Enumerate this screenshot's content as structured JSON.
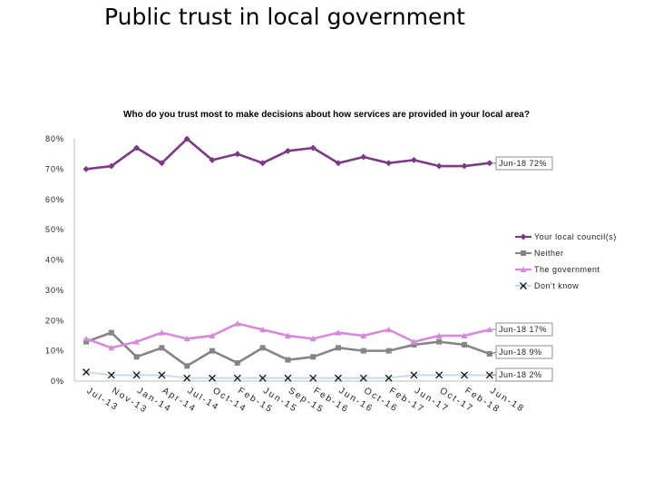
{
  "slide": {
    "title": "Public trust in local government",
    "question": "Who do you trust most to make decisions about how services are provided in your local area?"
  },
  "chart_data": {
    "type": "line",
    "categories": [
      "Jul-13",
      "Nov-13",
      "Jan-14",
      "Apr-14",
      "Jul-14",
      "Oct-14",
      "Feb-15",
      "Jun-15",
      "Sep-15",
      "Feb-16",
      "Jun-16",
      "Oct-16",
      "Feb-17",
      "Jun-17",
      "Oct-17",
      "Feb-18",
      "Jun-18"
    ],
    "x_tick_labels": [
      "Jul-13",
      "Nov-13",
      "Jan-14",
      "Apr-14",
      "Jul-14",
      "Oct-14",
      "Feb-15",
      "Jun-15",
      "Sep-15",
      "Feb-16",
      "Jun-16",
      "Oct-16",
      "Feb-17",
      "Jun-17",
      "Oct-17",
      "Feb-18",
      "Jun-18"
    ],
    "y_tick_labels": [
      "0%",
      "10%",
      "20%",
      "30%",
      "40%",
      "50%",
      "60%",
      "70%",
      "80%"
    ],
    "ylim": [
      0,
      80
    ],
    "series": [
      {
        "name": "Your local council(s)",
        "color": "#7b3a83",
        "marker": "diamond",
        "values": [
          70,
          71,
          77,
          72,
          80,
          73,
          75,
          72,
          76,
          77,
          72,
          74,
          72,
          73,
          71,
          71,
          72
        ]
      },
      {
        "name": "Neither",
        "color": "#858585",
        "marker": "square",
        "values": [
          13,
          16,
          8,
          11,
          5,
          10,
          6,
          11,
          7,
          8,
          11,
          10,
          10,
          12,
          13,
          12,
          9
        ]
      },
      {
        "name": "The government",
        "color": "#d58bd9",
        "marker": "triangle",
        "values": [
          14,
          11,
          13,
          16,
          14,
          15,
          19,
          17,
          15,
          14,
          16,
          15,
          17,
          13,
          15,
          15,
          17
        ]
      },
      {
        "name": "Don't know",
        "color": "#c5dde8",
        "marker": "x",
        "values": [
          3,
          2,
          2,
          2,
          1,
          1,
          1,
          1,
          1,
          1,
          1,
          1,
          1,
          2,
          2,
          2,
          2
        ]
      }
    ],
    "callouts": [
      {
        "series": "Your local council(s)",
        "label": "Jun-18  72%"
      },
      {
        "series": "The government",
        "label": "Jun-18  17%"
      },
      {
        "series": "Neither",
        "label": "Jun-18  9%"
      },
      {
        "series": "Don't know",
        "label": "Jun-18  2%"
      }
    ],
    "legend_position": "right",
    "grid": false
  }
}
